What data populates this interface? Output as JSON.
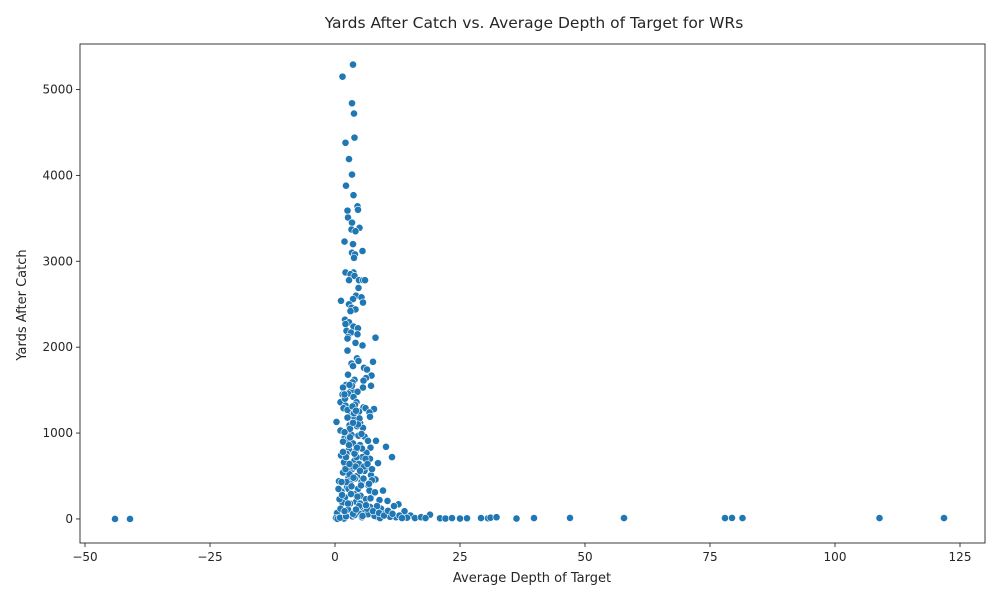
{
  "chart_data": {
    "type": "scatter",
    "title": "Yards After Catch vs. Average Depth of Target for WRs",
    "xlabel": "Average Depth of Target",
    "ylabel": "Yards After Catch",
    "xlim": [
      -51,
      130
    ],
    "ylim": [
      -280,
      5530
    ],
    "xticks": [
      -50,
      -25,
      0,
      25,
      50,
      75,
      100,
      125
    ],
    "yticks": [
      0,
      1000,
      2000,
      3000,
      4000,
      5000
    ],
    "grid": false,
    "marker_color": "#1f77b4",
    "marker_edge": "#ffffff",
    "series": [
      {
        "name": "WRs",
        "points": [
          [
            3.6,
            5290
          ],
          [
            1.5,
            5150
          ],
          [
            3.4,
            4840
          ],
          [
            3.8,
            4720
          ],
          [
            3.9,
            4440
          ],
          [
            2.1,
            4380
          ],
          [
            2.8,
            4190
          ],
          [
            3.4,
            4010
          ],
          [
            2.2,
            3880
          ],
          [
            3.7,
            3770
          ],
          [
            4.5,
            3640
          ],
          [
            4.6,
            3600
          ],
          [
            2.5,
            3590
          ],
          [
            2.6,
            3510
          ],
          [
            3.4,
            3450
          ],
          [
            4.9,
            3390
          ],
          [
            3.3,
            3370
          ],
          [
            4.1,
            3350
          ],
          [
            1.9,
            3230
          ],
          [
            3.6,
            3200
          ],
          [
            5.5,
            3120
          ],
          [
            3.4,
            3100
          ],
          [
            4.0,
            3080
          ],
          [
            3.8,
            3040
          ],
          [
            3.7,
            2870
          ],
          [
            2.1,
            2870
          ],
          [
            3.1,
            2850
          ],
          [
            3.9,
            2830
          ],
          [
            2.8,
            2780
          ],
          [
            4.8,
            2780
          ],
          [
            5.6,
            2780
          ],
          [
            6.0,
            2780
          ],
          [
            4.7,
            2690
          ],
          [
            4.2,
            2600
          ],
          [
            5.3,
            2580
          ],
          [
            3.6,
            2560
          ],
          [
            1.2,
            2540
          ],
          [
            5.6,
            2520
          ],
          [
            2.8,
            2500
          ],
          [
            3.3,
            2460
          ],
          [
            4.1,
            2440
          ],
          [
            3.1,
            2420
          ],
          [
            2.0,
            2320
          ],
          [
            2.8,
            2290
          ],
          [
            2.1,
            2270
          ],
          [
            3.7,
            2240
          ],
          [
            4.6,
            2220
          ],
          [
            2.3,
            2190
          ],
          [
            3.2,
            2170
          ],
          [
            4.5,
            2150
          ],
          [
            2.6,
            2120
          ],
          [
            2.5,
            2100
          ],
          [
            8.1,
            2110
          ],
          [
            4.1,
            2050
          ],
          [
            5.5,
            2020
          ],
          [
            2.5,
            1960
          ],
          [
            4.4,
            1870
          ],
          [
            7.6,
            1830
          ],
          [
            4.7,
            1840
          ],
          [
            3.3,
            1810
          ],
          [
            3.6,
            1780
          ],
          [
            5.8,
            1760
          ],
          [
            6.4,
            1740
          ],
          [
            2.6,
            1680
          ],
          [
            7.3,
            1670
          ],
          [
            6.2,
            1640
          ],
          [
            3.9,
            1620
          ],
          [
            5.7,
            1610
          ],
          [
            3.5,
            1590
          ],
          [
            7.2,
            1550
          ],
          [
            2.2,
            1560
          ],
          [
            1.6,
            1530
          ],
          [
            5.6,
            1530
          ],
          [
            3.3,
            1500
          ],
          [
            4.5,
            1480
          ],
          [
            1.5,
            1450
          ],
          [
            2.6,
            1460
          ],
          [
            3.7,
            1420
          ],
          [
            1.1,
            1360
          ],
          [
            4.3,
            1360
          ],
          [
            2.1,
            1320
          ],
          [
            5.7,
            1300
          ],
          [
            6.1,
            1290
          ],
          [
            7.8,
            1280
          ],
          [
            1.7,
            1290
          ],
          [
            4.8,
            1250
          ],
          [
            6.9,
            1240
          ],
          [
            3.1,
            1200
          ],
          [
            7.0,
            1190
          ],
          [
            3.9,
            1180
          ],
          [
            0.3,
            1130
          ],
          [
            5.0,
            1120
          ],
          [
            2.9,
            1090
          ],
          [
            4.4,
            1080
          ],
          [
            5.6,
            1060
          ],
          [
            1.1,
            1030
          ],
          [
            2.6,
            1010
          ],
          [
            3.3,
            980
          ],
          [
            5.9,
            960
          ],
          [
            1.9,
            940
          ],
          [
            6.6,
            910
          ],
          [
            8.2,
            910
          ],
          [
            3.6,
            880
          ],
          [
            5.0,
            860
          ],
          [
            10.2,
            840
          ],
          [
            7.1,
            830
          ],
          [
            2.8,
            810
          ],
          [
            4.1,
            790
          ],
          [
            6.3,
            770
          ],
          [
            1.2,
            740
          ],
          [
            2.3,
            760
          ],
          [
            5.5,
            720
          ],
          [
            11.4,
            720
          ],
          [
            7.0,
            700
          ],
          [
            3.9,
            680
          ],
          [
            8.6,
            650
          ],
          [
            4.8,
            640
          ],
          [
            2.1,
            620
          ],
          [
            6.5,
            600
          ],
          [
            3.4,
            580
          ],
          [
            5.9,
            560
          ],
          [
            1.6,
            540
          ],
          [
            7.2,
            510
          ],
          [
            4.4,
            500
          ],
          [
            2.7,
            480
          ],
          [
            8.1,
            460
          ],
          [
            0.8,
            440
          ],
          [
            5.3,
            430
          ],
          [
            3.1,
            410
          ],
          [
            6.7,
            390
          ],
          [
            2.4,
            370
          ],
          [
            4.6,
            350
          ],
          [
            9.6,
            330
          ],
          [
            1.3,
            320
          ],
          [
            7.7,
            300
          ],
          [
            3.8,
            290
          ],
          [
            5.1,
            270
          ],
          [
            2.0,
            250
          ],
          [
            6.2,
            230
          ],
          [
            8.9,
            220
          ],
          [
            10.5,
            210
          ],
          [
            4.2,
            200
          ],
          [
            1.5,
            190
          ],
          [
            3.0,
            180
          ],
          [
            12.7,
            170
          ],
          [
            11.8,
            150
          ],
          [
            7.0,
            140
          ],
          [
            5.6,
            130
          ],
          [
            9.2,
            120
          ],
          [
            2.6,
            110
          ],
          [
            13.9,
            90
          ],
          [
            6.0,
            80
          ],
          [
            0.4,
            70
          ],
          [
            4.9,
            60
          ],
          [
            10.9,
            50
          ],
          [
            15.1,
            40
          ],
          [
            3.5,
            30
          ],
          [
            8.3,
            25
          ],
          [
            12.2,
            20
          ],
          [
            0.2,
            10
          ],
          [
            16.0,
            10
          ],
          [
            1.8,
            5
          ],
          [
            19.0,
            50
          ],
          [
            17.2,
            20
          ],
          [
            14.4,
            15
          ],
          [
            18.1,
            10
          ],
          [
            21.0,
            8
          ],
          [
            22.1,
            5
          ],
          [
            23.4,
            10
          ],
          [
            25.0,
            5
          ],
          [
            26.4,
            8
          ],
          [
            29.2,
            10
          ],
          [
            30.6,
            8
          ],
          [
            31.1,
            15
          ],
          [
            32.3,
            20
          ],
          [
            36.3,
            5
          ],
          [
            39.8,
            10
          ],
          [
            47.0,
            12
          ],
          [
            57.8,
            10
          ],
          [
            78.0,
            10
          ],
          [
            79.4,
            12
          ],
          [
            81.5,
            10
          ],
          [
            108.9,
            10
          ],
          [
            121.8,
            10
          ],
          [
            -44.0,
            0
          ],
          [
            -41.0,
            0
          ],
          [
            0.5,
            0
          ],
          [
            1.0,
            15
          ],
          [
            2.2,
            30
          ],
          [
            3.9,
            45
          ],
          [
            5.4,
            20
          ],
          [
            6.6,
            55
          ],
          [
            7.9,
            35
          ],
          [
            9.0,
            10
          ],
          [
            10.0,
            65
          ],
          [
            11.0,
            25
          ],
          [
            12.9,
            40
          ],
          [
            13.4,
            10
          ],
          [
            0.9,
            230
          ],
          [
            1.4,
            280
          ],
          [
            2.3,
            430
          ],
          [
            2.9,
            520
          ],
          [
            3.6,
            610
          ],
          [
            4.0,
            470
          ],
          [
            4.3,
            720
          ],
          [
            5.2,
            390
          ],
          [
            5.8,
            610
          ],
          [
            6.9,
            330
          ],
          [
            7.4,
            450
          ],
          [
            8.4,
            150
          ],
          [
            1.8,
            660
          ],
          [
            2.4,
            920
          ],
          [
            3.0,
            1050
          ],
          [
            3.8,
            1230
          ],
          [
            4.7,
            970
          ],
          [
            5.4,
            820
          ],
          [
            6.1,
            700
          ],
          [
            1.3,
            430
          ],
          [
            2.7,
            350
          ],
          [
            3.2,
            290
          ],
          [
            4.5,
            260
          ],
          [
            5.0,
            180
          ],
          [
            6.4,
            120
          ],
          [
            7.6,
            90
          ],
          [
            8.8,
            70
          ],
          [
            9.8,
            40
          ],
          [
            10.6,
            95
          ],
          [
            11.5,
            60
          ],
          [
            1.6,
            900
          ],
          [
            2.0,
            1400
          ],
          [
            2.5,
            1270
          ],
          [
            3.4,
            1550
          ],
          [
            4.0,
            1330
          ],
          [
            4.9,
            1170
          ],
          [
            2.9,
            1560
          ],
          [
            3.5,
            1310
          ],
          [
            1.9,
            1450
          ],
          [
            4.6,
            1100
          ],
          [
            3.0,
            950
          ],
          [
            2.2,
            720
          ],
          [
            4.1,
            610
          ],
          [
            5.7,
            470
          ],
          [
            6.8,
            410
          ],
          [
            3.3,
            380
          ],
          [
            2.6,
            180
          ],
          [
            4.8,
            150
          ],
          [
            0.7,
            350
          ],
          [
            1.1,
            120
          ],
          [
            1.9,
            90
          ],
          [
            3.6,
            60
          ],
          [
            4.2,
            110
          ],
          [
            5.5,
            35
          ],
          [
            6.2,
            160
          ],
          [
            7.1,
            240
          ],
          [
            8.0,
            310
          ],
          [
            2.8,
            860
          ],
          [
            3.9,
            760
          ],
          [
            5.3,
            990
          ],
          [
            1.6,
            780
          ],
          [
            2.1,
            580
          ],
          [
            3.7,
            480
          ],
          [
            4.4,
            830
          ],
          [
            5.0,
            560
          ],
          [
            6.5,
            640
          ],
          [
            7.4,
            580
          ],
          [
            2.5,
            1180
          ],
          [
            3.6,
            1120
          ],
          [
            4.2,
            1260
          ],
          [
            1.9,
            1010
          ],
          [
            2.9,
            640
          ]
        ]
      }
    ]
  }
}
